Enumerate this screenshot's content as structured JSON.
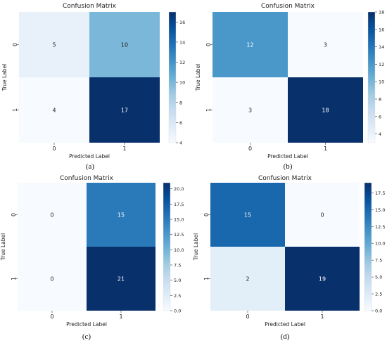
{
  "chart_data": [
    {
      "type": "heatmap",
      "title": "Confusion Matrix",
      "xlabel": "Predicted Label",
      "ylabel": "True Label",
      "x_categories": [
        "0",
        "1"
      ],
      "y_categories": [
        "0",
        "1"
      ],
      "values": [
        [
          5,
          10
        ],
        [
          4,
          17
        ]
      ],
      "colorbar": {
        "range": [
          4,
          17
        ],
        "ticks": [
          "4",
          "6",
          "8",
          "10",
          "12",
          "14",
          "16"
        ],
        "tick_values": [
          4,
          6,
          8,
          10,
          12,
          14,
          16
        ]
      },
      "colormap": "Blues",
      "caption": "(a)"
    },
    {
      "type": "heatmap",
      "title": "Confusion Matrix",
      "xlabel": "Predicted Label",
      "ylabel": "True Label",
      "x_categories": [
        "0",
        "1"
      ],
      "y_categories": [
        "0",
        "1"
      ],
      "values": [
        [
          12,
          3
        ],
        [
          3,
          18
        ]
      ],
      "colorbar": {
        "range": [
          3,
          18
        ],
        "ticks": [
          "4",
          "6",
          "8",
          "10",
          "12",
          "14",
          "16",
          "18"
        ],
        "tick_values": [
          4,
          6,
          8,
          10,
          12,
          14,
          16,
          18
        ]
      },
      "colormap": "Blues",
      "caption": "(b)"
    },
    {
      "type": "heatmap",
      "title": "Confusion Matrix",
      "xlabel": "Predicted Label",
      "ylabel": "True Label",
      "x_categories": [
        "0",
        "1"
      ],
      "y_categories": [
        "0",
        "1"
      ],
      "values": [
        [
          0,
          15
        ],
        [
          0,
          21
        ]
      ],
      "colorbar": {
        "range": [
          0,
          21
        ],
        "ticks": [
          "0.0",
          "2.5",
          "5.0",
          "7.5",
          "10.0",
          "12.5",
          "15.0",
          "17.5",
          "20.0"
        ],
        "tick_values": [
          0,
          2.5,
          5,
          7.5,
          10,
          12.5,
          15,
          17.5,
          20
        ]
      },
      "colormap": "Blues",
      "caption": "(c)"
    },
    {
      "type": "heatmap",
      "title": "Confusion Matrix",
      "xlabel": "Predicted Label",
      "ylabel": "True Label",
      "x_categories": [
        "0",
        "1"
      ],
      "y_categories": [
        "0",
        "1"
      ],
      "values": [
        [
          15,
          0
        ],
        [
          2,
          19
        ]
      ],
      "colorbar": {
        "range": [
          0,
          19
        ],
        "ticks": [
          "0.0",
          "2.5",
          "5.0",
          "7.5",
          "10.0",
          "12.5",
          "15.0",
          "17.5"
        ],
        "tick_values": [
          0,
          2.5,
          5,
          7.5,
          10,
          12.5,
          15,
          17.5
        ]
      },
      "colormap": "Blues",
      "caption": "(d)"
    }
  ]
}
